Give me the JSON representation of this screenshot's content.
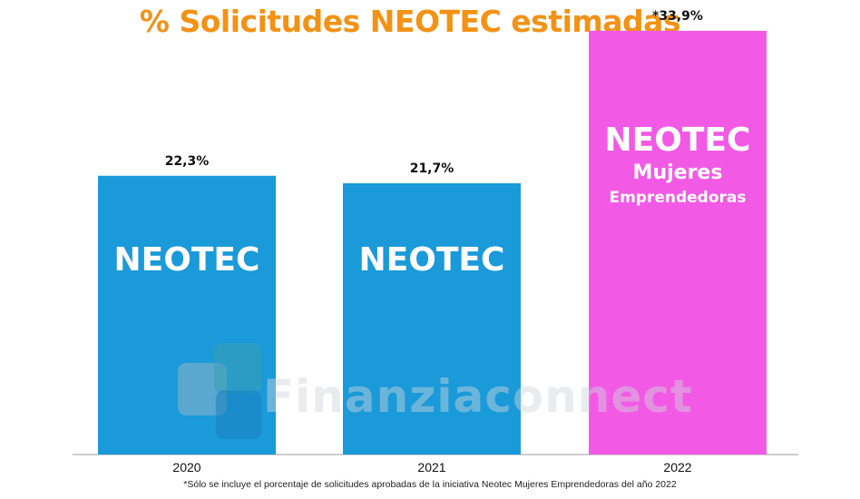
{
  "title": "% Solicitudes NEOTEC estimadas",
  "chart_data": {
    "type": "bar",
    "title": "% Solicitudes NEOTEC estimadas",
    "categories": [
      "2020",
      "2021",
      "2022"
    ],
    "values": [
      22.3,
      21.7,
      33.9
    ],
    "value_labels": [
      "22,3%",
      "21,7%",
      "*33,9%"
    ],
    "bar_colors": [
      "#1a9ad9",
      "#1a9ad9",
      "#f25ae5"
    ],
    "ylim": [
      0,
      36
    ],
    "grid": false,
    "xlabel": "",
    "ylabel": ""
  },
  "bar_labels": {
    "b2020": "NEOTEC",
    "b2021": "NEOTEC",
    "b2022_main": "NEOTEC",
    "b2022_line2": "Mujeres",
    "b2022_line3": "Emprendedoras"
  },
  "watermark": "Finanziaconnect",
  "footnote": "*Sólo se incluye el porcentaje de solicitudes aprobadas de la iniciativa Neotec Mujeres Emprendedoras del año 2022",
  "colors": {
    "title": "#f39214",
    "bar_blue": "#1a9ad9",
    "bar_pink": "#f25ae5"
  }
}
